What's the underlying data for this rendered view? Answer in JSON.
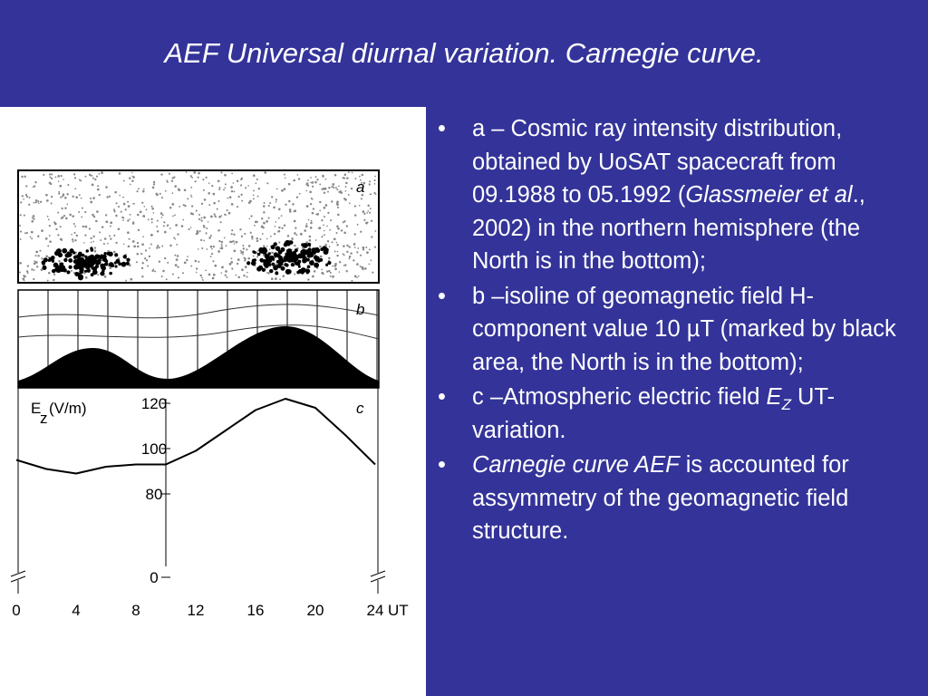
{
  "title": "AEF Universal diurnal variation. Carnegie curve.",
  "figure": {
    "panel_labels": [
      "a",
      "b",
      "c"
    ],
    "chart": {
      "type": "line",
      "ylabel": "E",
      "ylabel_sub": "z",
      "ylabel_unit": "(V/m)",
      "yticks": [
        0,
        80,
        100,
        120
      ],
      "xticks": [
        0,
        4,
        8,
        12,
        16,
        20,
        24
      ],
      "xunit": "UT",
      "x": [
        0,
        2,
        4,
        6,
        8,
        10,
        12,
        14,
        16,
        18,
        20,
        22,
        24
      ],
      "values": [
        95,
        91,
        89,
        92,
        93,
        93,
        99,
        108,
        117,
        122,
        118,
        106,
        93
      ],
      "color": "#000000"
    }
  },
  "bullets": [
    [
      {
        "text": "a – Cosmic ray intensity distribution, obtained by UoSAT spacecraft from 09.1988 to 05.1992 ("
      },
      {
        "text": "Glassmeier et al",
        "italic": true
      },
      {
        "text": "., 2002) in the northern hemisphere (the North is in the bottom);"
      }
    ],
    [
      {
        "text": "b –isoline of geomagnetic field H-component value 10 µT (marked by black area, the North is in the bottom);"
      }
    ],
    [
      {
        "text": "c –Atmospheric electric field "
      },
      {
        "text": "E",
        "italic": true
      },
      {
        "text": "Z",
        "italic": true,
        "sub": true
      },
      {
        "text": " UT-variation."
      }
    ],
    [
      {
        "text": "Carnegie curve AEF",
        "italic": true
      },
      {
        "text": " is accounted for assymmetry of the geomagnetic field structure."
      }
    ]
  ]
}
